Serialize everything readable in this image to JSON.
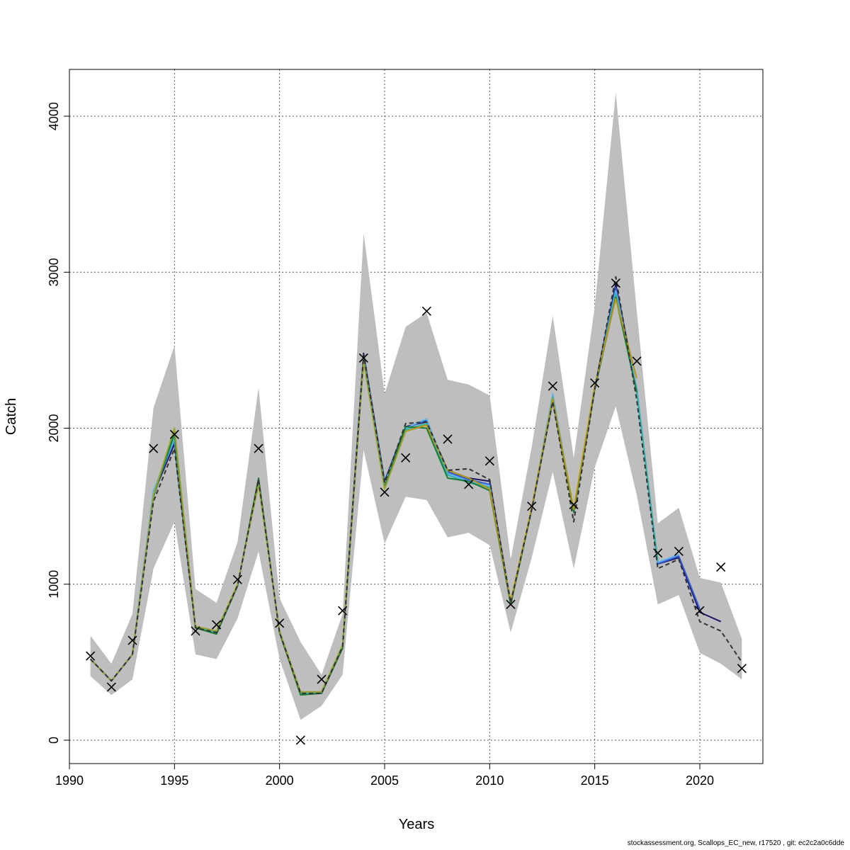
{
  "chart_data": {
    "type": "line",
    "xlabel": "Years",
    "ylabel": "Catch",
    "xlim": [
      1990,
      2023
    ],
    "ylim": [
      -150,
      4300
    ],
    "x_ticks": [
      1990,
      1995,
      2000,
      2005,
      2010,
      2015,
      2020
    ],
    "y_ticks": [
      0,
      1000,
      2000,
      3000,
      4000
    ],
    "grid": true,
    "ci_band_color": "#bebebe",
    "ci_band": {
      "years": [
        1991,
        1992,
        1993,
        1994,
        1995,
        1996,
        1997,
        1998,
        1999,
        2000,
        2001,
        2002,
        2003,
        2004,
        2005,
        2006,
        2007,
        2008,
        2009,
        2010,
        2011,
        2012,
        2013,
        2014,
        2015,
        2016,
        2017,
        2018,
        2019,
        2020,
        2021,
        2022
      ],
      "lower": [
        410,
        290,
        390,
        1100,
        1400,
        550,
        520,
        780,
        1210,
        520,
        130,
        220,
        420,
        1860,
        1260,
        1560,
        1540,
        1300,
        1330,
        1250,
        690,
        1170,
        1720,
        1100,
        1750,
        2140,
        1570,
        870,
        930,
        560,
        490,
        390
      ],
      "upper": [
        670,
        490,
        810,
        2130,
        2530,
        970,
        880,
        1270,
        2260,
        910,
        630,
        420,
        810,
        3250,
        2220,
        2650,
        2740,
        2310,
        2280,
        2210,
        1160,
        1880,
        2720,
        1810,
        2780,
        4150,
        2750,
        1390,
        1490,
        1040,
        1010,
        650
      ]
    },
    "observed": {
      "marker": "x",
      "years": [
        1991,
        1992,
        1993,
        1994,
        1995,
        1996,
        1997,
        1998,
        1999,
        2000,
        2001,
        2002,
        2003,
        2004,
        2005,
        2006,
        2007,
        2008,
        2009,
        2010,
        2011,
        2012,
        2013,
        2014,
        2015,
        2016,
        2017,
        2018,
        2019,
        2020,
        2021,
        2022
      ],
      "values": [
        540,
        340,
        640,
        1870,
        1960,
        700,
        740,
        1030,
        1870,
        750,
        0,
        390,
        830,
        2450,
        1590,
        1810,
        2750,
        1930,
        1640,
        1790,
        870,
        1500,
        2270,
        1510,
        2290,
        2930,
        2430,
        1200,
        1210,
        830,
        1110,
        460
      ]
    },
    "series": [
      {
        "color": "#1b1464",
        "dashed": false,
        "years": [
          1991,
          1992,
          1993,
          1994,
          1995,
          1996,
          1997,
          1998,
          1999,
          2000,
          2001,
          2002,
          2003,
          2004,
          2005,
          2006,
          2007,
          2008,
          2009,
          2010,
          2011,
          2012,
          2013,
          2014,
          2015,
          2016,
          2017,
          2018,
          2019,
          2020,
          2021
        ],
        "values": [
          520,
          380,
          550,
          1580,
          1900,
          720,
          690,
          990,
          1670,
          690,
          300,
          300,
          600,
          2480,
          1660,
          2010,
          2040,
          1730,
          1680,
          1660,
          880,
          1480,
          2180,
          1470,
          2260,
          2920,
          2250,
          1130,
          1170,
          820,
          760
        ]
      },
      {
        "color": "#2f5bd6",
        "dashed": false,
        "years": [
          1991,
          1992,
          1993,
          1994,
          1995,
          1996,
          1997,
          1998,
          1999,
          2000,
          2001,
          2002,
          2003,
          2004,
          2005,
          2006,
          2007,
          2008,
          2009,
          2010,
          2011,
          2012,
          2013,
          2014,
          2015,
          2016,
          2017,
          2018,
          2019,
          2020
        ],
        "values": [
          520,
          380,
          550,
          1590,
          1920,
          720,
          690,
          990,
          1670,
          690,
          300,
          300,
          600,
          2470,
          1650,
          2000,
          2050,
          1720,
          1670,
          1640,
          880,
          1480,
          2190,
          1470,
          2260,
          2900,
          2250,
          1130,
          1180,
          840
        ]
      },
      {
        "color": "#5fb3e8",
        "dashed": false,
        "years": [
          1991,
          1992,
          1993,
          1994,
          1995,
          1996,
          1997,
          1998,
          1999,
          2000,
          2001,
          2002,
          2003,
          2004,
          2005,
          2006,
          2007,
          2008,
          2009,
          2010,
          2011,
          2012,
          2013,
          2014,
          2015,
          2016,
          2017,
          2018,
          2019
        ],
        "values": [
          520,
          380,
          550,
          1600,
          1930,
          720,
          690,
          990,
          1670,
          690,
          300,
          300,
          600,
          2460,
          1640,
          2000,
          2060,
          1710,
          1660,
          1630,
          880,
          1480,
          2220,
          1470,
          2250,
          2880,
          2260,
          1140,
          1190
        ]
      },
      {
        "color": "#2fb5a4",
        "dashed": false,
        "years": [
          1991,
          1992,
          1993,
          1994,
          1995,
          1996,
          1997,
          1998,
          1999,
          2000,
          2001,
          2002,
          2003,
          2004,
          2005,
          2006,
          2007,
          2008,
          2009,
          2010,
          2011,
          2012,
          2013,
          2014,
          2015,
          2016,
          2017,
          2018
        ],
        "values": [
          520,
          380,
          550,
          1570,
          1950,
          720,
          690,
          990,
          1670,
          690,
          300,
          300,
          600,
          2450,
          1630,
          1990,
          2030,
          1700,
          1650,
          1620,
          880,
          1480,
          2200,
          1460,
          2250,
          2860,
          2230,
          1150
        ]
      },
      {
        "color": "#1a7a36",
        "dashed": false,
        "years": [
          1991,
          1992,
          1993,
          1994,
          1995,
          1996,
          1997,
          1998,
          1999,
          2000,
          2001,
          2002,
          2003,
          2004,
          2005,
          2006,
          2007,
          2008,
          2009,
          2010,
          2011,
          2012,
          2013,
          2014,
          2015,
          2016,
          2017
        ],
        "values": [
          520,
          380,
          550,
          1560,
          1970,
          720,
          680,
          990,
          1680,
          690,
          290,
          300,
          590,
          2440,
          1620,
          2010,
          2000,
          1680,
          1660,
          1600,
          870,
          1480,
          2180,
          1460,
          2250,
          2840,
          2230
        ]
      },
      {
        "color": "#9aa12a",
        "dashed": false,
        "years": [
          1991,
          1992,
          1993,
          1994,
          1995,
          1996,
          1997,
          1998,
          1999,
          2000,
          2001,
          2002,
          2003,
          2004,
          2005,
          2006
        ],
        "values": [
          520,
          380,
          550,
          1570,
          2000,
          730,
          700,
          1000,
          1640,
          700,
          310,
          310,
          610,
          2430,
          1610,
          1980
        ]
      },
      {
        "color": "#b8960c",
        "dashed": false,
        "years": [
          2006,
          2007,
          2008,
          2009,
          2010,
          2011,
          2012,
          2013,
          2014,
          2015,
          2016,
          2017
        ],
        "values": [
          1980,
          2020,
          1730,
          1680,
          1610,
          890,
          1490,
          2190,
          1480,
          2270,
          2830,
          2320
        ]
      },
      {
        "color": "#333333",
        "dashed": true,
        "years": [
          1991,
          1992,
          1993,
          1994,
          1995,
          1996,
          1997,
          1998,
          1999,
          2000,
          2001,
          2002,
          2003,
          2004,
          2005,
          2006,
          2007,
          2008,
          2009,
          2010,
          2011,
          2012,
          2013,
          2014,
          2015,
          2016,
          2017,
          2018,
          2019,
          2020,
          2021,
          2022
        ],
        "values": [
          520,
          380,
          550,
          1530,
          1870,
          720,
          690,
          990,
          1670,
          690,
          300,
          300,
          600,
          2470,
          1650,
          2030,
          2040,
          1730,
          1740,
          1670,
          880,
          1480,
          2170,
          1400,
          2250,
          2970,
          2180,
          1100,
          1160,
          760,
          700,
          500
        ]
      }
    ]
  },
  "footer_text": "stockassessment.org, Scallops_EC_new, r17520 , git: ec2c2a0c6dde"
}
